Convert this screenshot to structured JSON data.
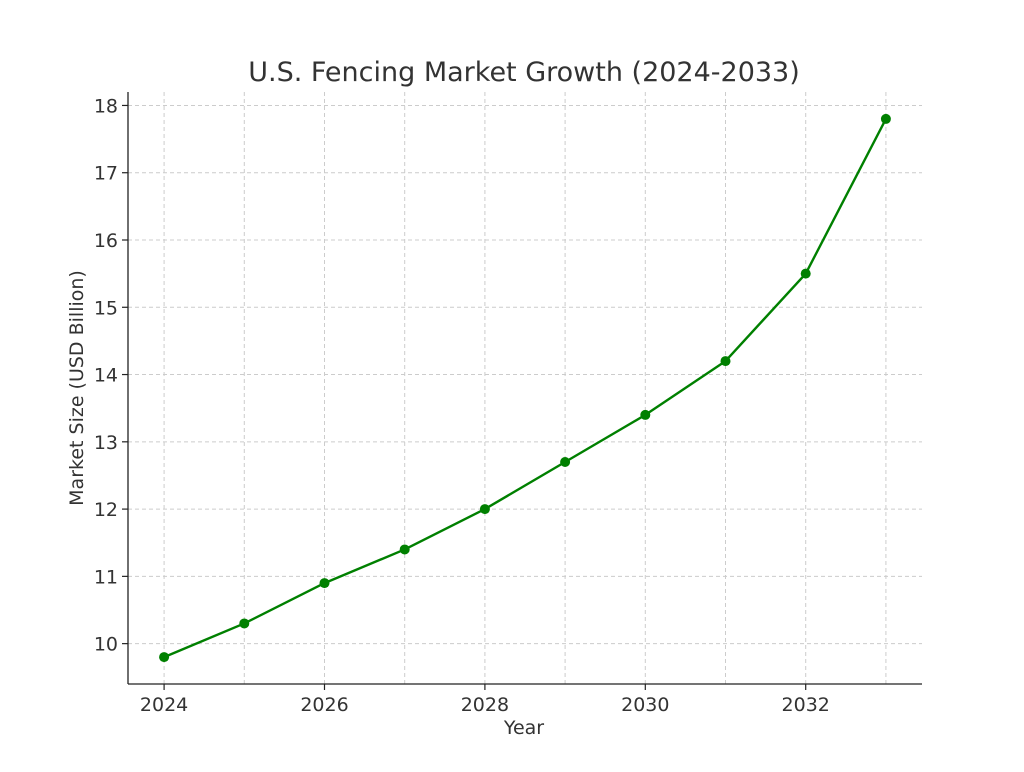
{
  "chart_data": {
    "type": "line",
    "title": "U.S. Fencing Market Growth (2024-2033)",
    "xlabel": "Year",
    "ylabel": "Market Size (USD Billion)",
    "x": [
      2024,
      2025,
      2026,
      2027,
      2028,
      2029,
      2030,
      2031,
      2032,
      2033
    ],
    "series": [
      {
        "values": [
          9.8,
          10.3,
          10.9,
          11.4,
          12.0,
          12.7,
          13.4,
          14.2,
          15.5,
          17.8
        ],
        "color": "#008000",
        "marker": "circle"
      }
    ],
    "xlim": [
      2023.55,
      2033.45
    ],
    "ylim": [
      9.4,
      18.2
    ],
    "xticks": [
      2024,
      2026,
      2028,
      2030,
      2032
    ],
    "yticks": [
      10,
      11,
      12,
      13,
      14,
      15,
      16,
      17,
      18
    ],
    "grid": true
  }
}
